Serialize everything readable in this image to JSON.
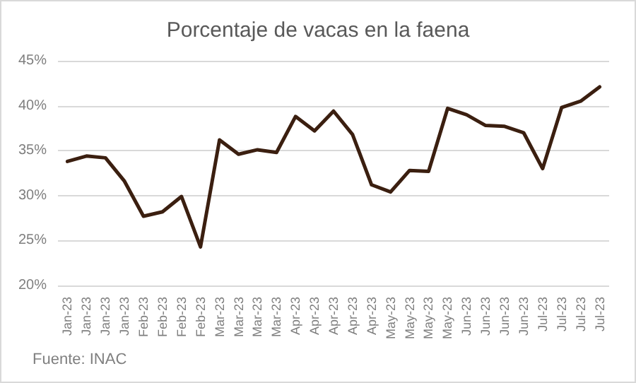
{
  "chart_data": {
    "type": "line",
    "title": "Porcentaje de vacas en la faena",
    "categories": [
      "Jan-23",
      "Jan-23",
      "Jan-23",
      "Jan-23",
      "Feb-23",
      "Feb-23",
      "Feb-23",
      "Feb-23",
      "Mar-23",
      "Mar-23",
      "Mar-23",
      "Mar-23",
      "Apr-23",
      "Apr-23",
      "Apr-23",
      "Apr-23",
      "Apr-23",
      "May-23",
      "May-23",
      "May-23",
      "May-23",
      "Jun-23",
      "Jun-23",
      "Jun-23",
      "Jun-23",
      "Jul-23",
      "Jul-23",
      "Jul-23",
      "Jul-23"
    ],
    "series": [
      {
        "color": "#3b1f10",
        "values": [
          33.8,
          34.4,
          34.2,
          31.6,
          27.7,
          28.2,
          29.9,
          24.3,
          36.2,
          34.6,
          35.1,
          34.8,
          38.8,
          37.2,
          39.4,
          36.8,
          31.2,
          30.4,
          32.8,
          32.7,
          39.7,
          39.0,
          37.8,
          37.7,
          37.0,
          33.0,
          39.8,
          40.5,
          42.1
        ]
      }
    ],
    "ylim": [
      20,
      45
    ],
    "yticks": [
      {
        "value": 20,
        "label": "20%"
      },
      {
        "value": 25,
        "label": "25%"
      },
      {
        "value": 30,
        "label": "30%"
      },
      {
        "value": 35,
        "label": "35%"
      },
      {
        "value": 40,
        "label": "40%"
      },
      {
        "value": 45,
        "label": "45%"
      }
    ],
    "grid": "y",
    "marker": "none",
    "line_style": "solid",
    "annotations": [
      "Fuente: INAC"
    ]
  }
}
